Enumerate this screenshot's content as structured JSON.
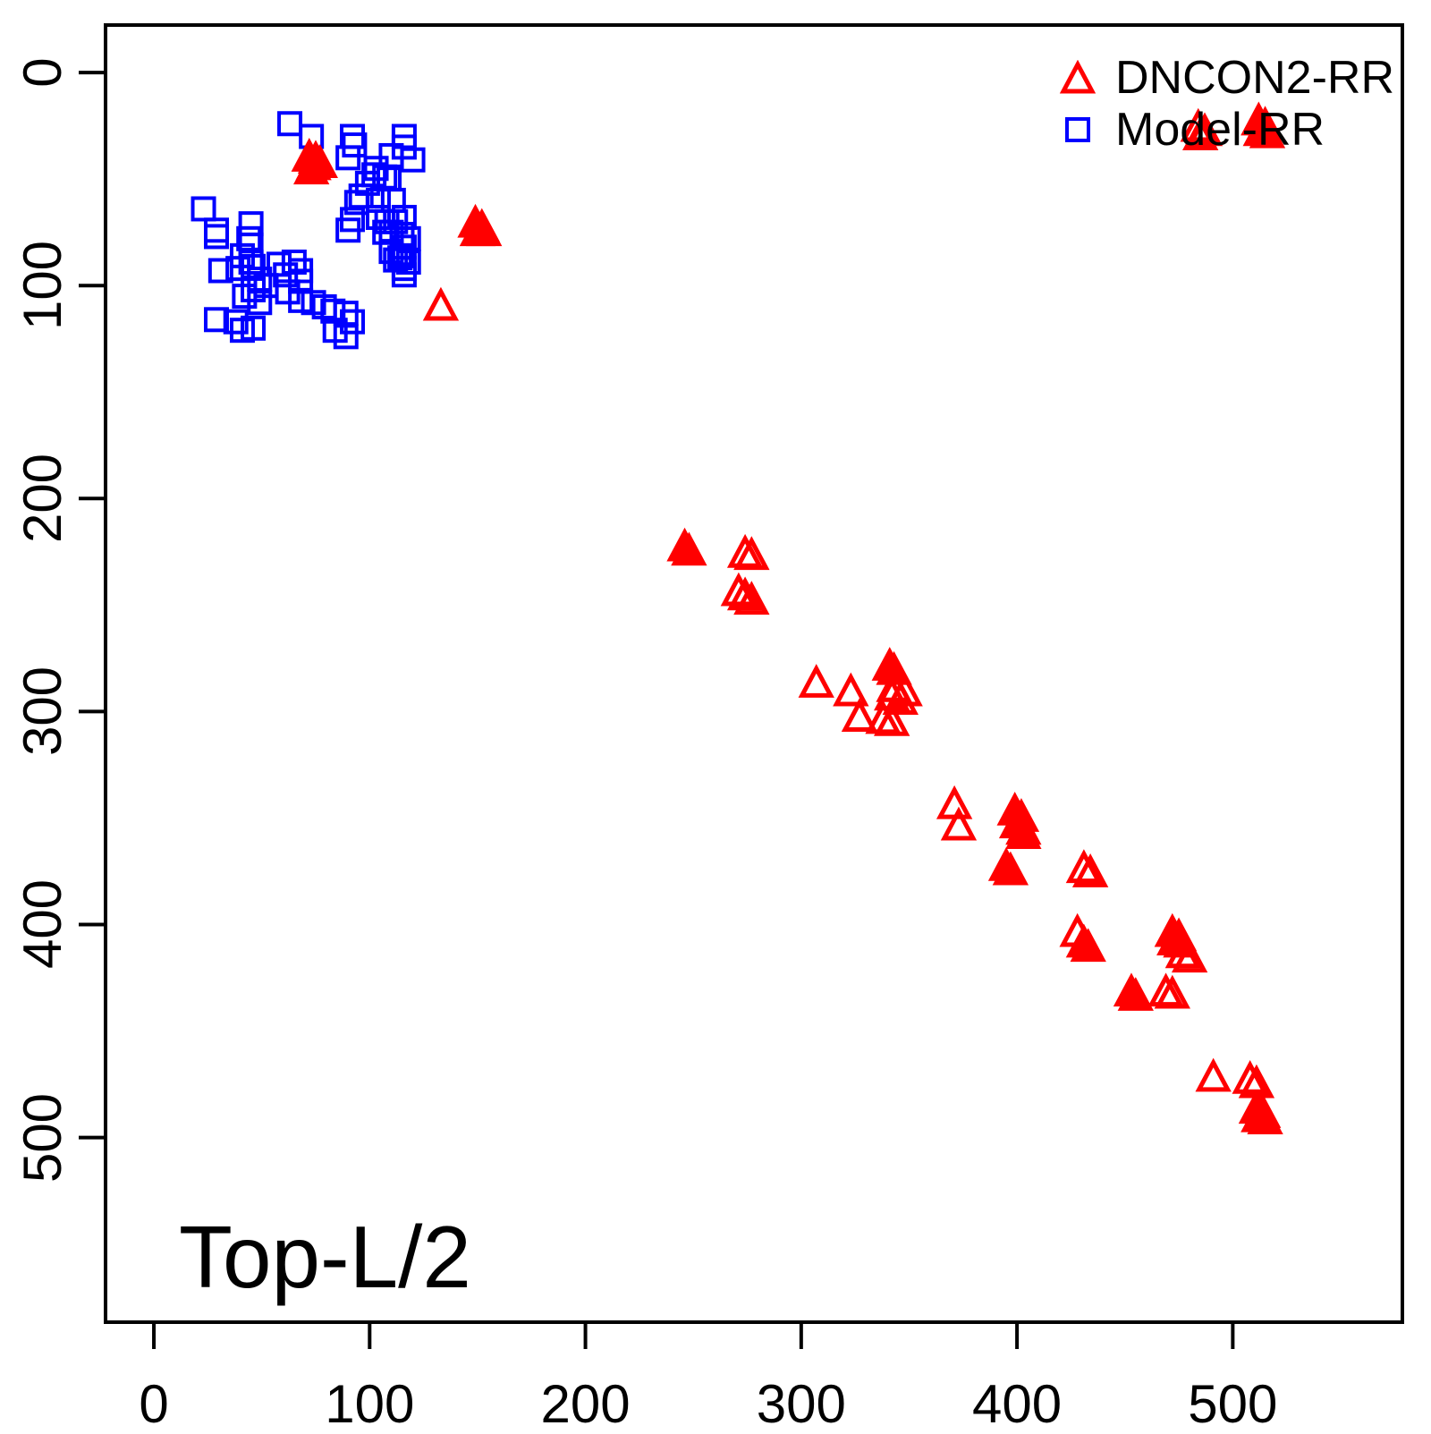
{
  "chart_data": {
    "type": "scatter",
    "title": "Top-L/2",
    "xlabel": "",
    "ylabel": "",
    "x_ticks": [
      0,
      100,
      200,
      300,
      400,
      500
    ],
    "y_ticks": [
      0,
      100,
      200,
      300,
      400,
      500
    ],
    "xlim": [
      -22.4,
      578.6
    ],
    "ylim": [
      -22.3,
      586.7
    ],
    "y_axis_reversed": true,
    "grid": false,
    "legend_position": "top-right",
    "axis_color": "#000000",
    "background_color": "#ffffff",
    "legend": [
      {
        "label": "DNCON2-RR",
        "marker": "triangle",
        "color": "#ff0000"
      },
      {
        "label": "Model-RR",
        "marker": "square",
        "color": "#0000ff"
      }
    ],
    "series": [
      {
        "name": "DNCON2-RR",
        "marker": "triangle",
        "color": "#ff0000",
        "points_format": "[x, y, filled]",
        "points": [
          [
            72,
            40,
            1
          ],
          [
            75,
            41,
            1
          ],
          [
            74,
            44,
            1
          ],
          [
            77,
            43,
            1
          ],
          [
            73,
            46,
            1
          ],
          [
            149,
            71,
            1
          ],
          [
            152,
            73,
            1
          ],
          [
            150,
            75,
            1
          ],
          [
            153,
            75,
            1
          ],
          [
            133,
            110,
            0
          ],
          [
            484,
            26,
            0
          ],
          [
            487,
            28,
            0
          ],
          [
            485,
            30,
            0
          ],
          [
            512,
            23,
            1
          ],
          [
            515,
            25,
            1
          ],
          [
            513,
            28,
            1
          ],
          [
            516,
            29,
            1
          ],
          [
            246,
            223,
            1
          ],
          [
            248,
            225,
            1
          ],
          [
            274,
            226,
            0
          ],
          [
            277,
            227,
            0
          ],
          [
            271,
            244,
            0
          ],
          [
            274,
            246,
            0
          ],
          [
            277,
            248,
            0
          ],
          [
            307,
            287,
            0
          ],
          [
            323,
            291,
            0
          ],
          [
            341,
            279,
            1
          ],
          [
            343,
            281,
            1
          ],
          [
            343,
            289,
            0
          ],
          [
            348,
            291,
            0
          ],
          [
            342,
            293,
            0
          ],
          [
            346,
            295,
            0
          ],
          [
            327,
            303,
            0
          ],
          [
            338,
            304,
            0
          ],
          [
            342,
            305,
            0
          ],
          [
            371,
            344,
            0
          ],
          [
            373,
            354,
            0
          ],
          [
            399,
            347,
            1
          ],
          [
            402,
            350,
            1
          ],
          [
            400,
            353,
            1
          ],
          [
            403,
            356,
            1
          ],
          [
            403,
            358,
            0
          ],
          [
            395,
            373,
            1
          ],
          [
            397,
            375,
            1
          ],
          [
            431,
            374,
            0
          ],
          [
            434,
            376,
            0
          ],
          [
            428,
            404,
            0
          ],
          [
            431,
            409,
            1
          ],
          [
            433,
            411,
            1
          ],
          [
            472,
            404,
            1
          ],
          [
            475,
            406,
            1
          ],
          [
            473,
            408,
            1
          ],
          [
            476,
            409,
            1
          ],
          [
            477,
            414,
            0
          ],
          [
            480,
            416,
            0
          ],
          [
            453,
            432,
            1
          ],
          [
            455,
            434,
            1
          ],
          [
            469,
            432,
            0
          ],
          [
            472,
            433,
            0
          ],
          [
            491,
            472,
            0
          ],
          [
            508,
            473,
            0
          ],
          [
            511,
            475,
            0
          ],
          [
            511,
            487,
            1
          ],
          [
            514,
            489,
            1
          ],
          [
            512,
            491,
            1
          ],
          [
            515,
            492,
            1
          ]
        ]
      },
      {
        "name": "Model-RR",
        "marker": "square",
        "color": "#0000ff",
        "points_format": "[x, y]",
        "points": [
          [
            63,
            24
          ],
          [
            73,
            30
          ],
          [
            92,
            30
          ],
          [
            93,
            34
          ],
          [
            116,
            30
          ],
          [
            116,
            35
          ],
          [
            90,
            40
          ],
          [
            110,
            39
          ],
          [
            120,
            41
          ],
          [
            103,
            45
          ],
          [
            107,
            49
          ],
          [
            99,
            52
          ],
          [
            102,
            48
          ],
          [
            109,
            50
          ],
          [
            96,
            58
          ],
          [
            94,
            61
          ],
          [
            104,
            60
          ],
          [
            111,
            60
          ],
          [
            92,
            69
          ],
          [
            104,
            68
          ],
          [
            112,
            70
          ],
          [
            108,
            70
          ],
          [
            116,
            68
          ],
          [
            90,
            74
          ],
          [
            107,
            75
          ],
          [
            115,
            76
          ],
          [
            110,
            75
          ],
          [
            118,
            78
          ],
          [
            116,
            82
          ],
          [
            112,
            88
          ],
          [
            118,
            89
          ],
          [
            114,
            87
          ],
          [
            116,
            95
          ],
          [
            110,
            84
          ],
          [
            115,
            86
          ],
          [
            116,
            92
          ],
          [
            45,
            71
          ],
          [
            45,
            89
          ],
          [
            58,
            90
          ],
          [
            65,
            89
          ],
          [
            23,
            64
          ],
          [
            29,
            74
          ],
          [
            29,
            77
          ],
          [
            44,
            78
          ],
          [
            45,
            81
          ],
          [
            41,
            86
          ],
          [
            31,
            93
          ],
          [
            39,
            92
          ],
          [
            46,
            91
          ],
          [
            49,
            97
          ],
          [
            52,
            100
          ],
          [
            46,
            102
          ],
          [
            42,
            105
          ],
          [
            49,
            108
          ],
          [
            61,
            95
          ],
          [
            68,
            93
          ],
          [
            68,
            98
          ],
          [
            62,
            103
          ],
          [
            68,
            107
          ],
          [
            74,
            108
          ],
          [
            79,
            110
          ],
          [
            83,
            112
          ],
          [
            89,
            113
          ],
          [
            92,
            117
          ],
          [
            29,
            116
          ],
          [
            38,
            117
          ],
          [
            41,
            121
          ],
          [
            46,
            120
          ],
          [
            84,
            121
          ],
          [
            89,
            124
          ]
        ]
      }
    ]
  }
}
